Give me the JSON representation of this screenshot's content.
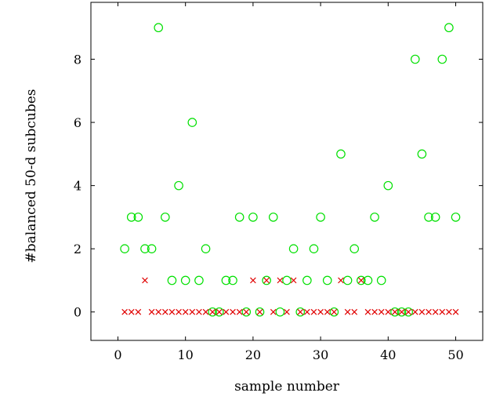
{
  "chart_data": {
    "type": "scatter",
    "title": "",
    "xlabel": "sample number",
    "ylabel": "#balanced 50-d subcubes",
    "xlim": [
      -4,
      54
    ],
    "ylim": [
      -0.9,
      9.8
    ],
    "xticks": [
      "0",
      "10",
      "20",
      "30",
      "40",
      "50"
    ],
    "yticks": [
      "0",
      "2",
      "4",
      "6",
      "8"
    ],
    "grid": false,
    "legend": "none",
    "series": [
      {
        "marker": "circle",
        "color": "#00e000",
        "x": [
          1,
          2,
          3,
          4,
          5,
          6,
          7,
          8,
          9,
          10,
          11,
          12,
          13,
          14,
          15,
          16,
          17,
          18,
          19,
          20,
          21,
          22,
          23,
          24,
          25,
          26,
          27,
          28,
          29,
          30,
          31,
          32,
          33,
          34,
          35,
          36,
          37,
          38,
          39,
          40,
          41,
          42,
          43,
          44,
          45,
          46,
          47,
          48,
          49,
          50
        ],
        "y": [
          2,
          3,
          3,
          2,
          2,
          9,
          3,
          1,
          4,
          1,
          6,
          1,
          2,
          0,
          0,
          1,
          1,
          3,
          0,
          3,
          0,
          1,
          3,
          0,
          1,
          2,
          0,
          1,
          2,
          3,
          1,
          0,
          5,
          1,
          2,
          1,
          1,
          3,
          1,
          4,
          0,
          0,
          0,
          8,
          5,
          3,
          3,
          8,
          9,
          3
        ]
      },
      {
        "marker": "cross",
        "color": "#e00000",
        "x": [
          1,
          2,
          3,
          4,
          5,
          6,
          7,
          8,
          9,
          10,
          11,
          12,
          13,
          14,
          15,
          16,
          17,
          18,
          19,
          20,
          21,
          22,
          23,
          24,
          25,
          26,
          27,
          28,
          29,
          30,
          31,
          32,
          33,
          34,
          35,
          36,
          37,
          38,
          39,
          40,
          41,
          42,
          43,
          44,
          45,
          46,
          47,
          48,
          49,
          50
        ],
        "y": [
          0,
          0,
          0,
          1,
          0,
          0,
          0,
          0,
          0,
          0,
          0,
          0,
          0,
          0,
          0,
          0,
          0,
          0,
          0,
          1,
          0,
          1,
          0,
          1,
          0,
          1,
          0,
          0,
          0,
          0,
          0,
          0,
          1,
          0,
          0,
          1,
          0,
          0,
          0,
          0,
          0,
          0,
          0,
          0,
          0,
          0,
          0,
          0,
          0,
          0
        ]
      }
    ]
  }
}
